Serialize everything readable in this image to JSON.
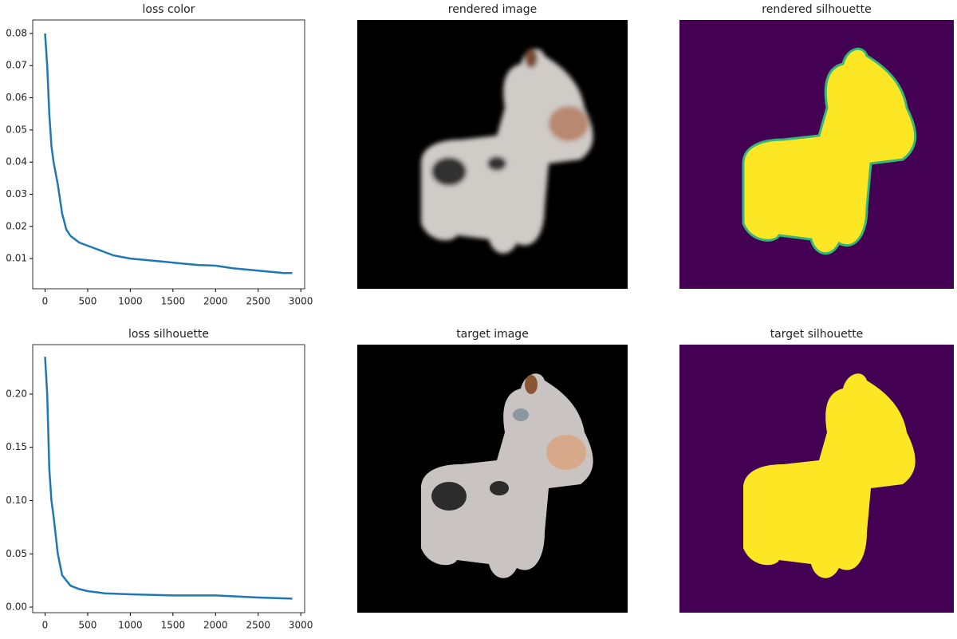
{
  "chart_data": [
    {
      "type": "line",
      "title": "loss color",
      "color": "#1f77b4",
      "x": [
        0,
        25,
        50,
        75,
        100,
        150,
        200,
        250,
        300,
        400,
        500,
        600,
        700,
        800,
        900,
        1000,
        1200,
        1400,
        1600,
        1800,
        2000,
        2200,
        2400,
        2600,
        2800,
        2900
      ],
      "values": [
        0.08,
        0.07,
        0.055,
        0.045,
        0.04,
        0.033,
        0.024,
        0.019,
        0.017,
        0.015,
        0.014,
        0.013,
        0.012,
        0.011,
        0.0105,
        0.01,
        0.0095,
        0.009,
        0.0085,
        0.008,
        0.0078,
        0.007,
        0.0065,
        0.006,
        0.0055,
        0.0055
      ],
      "xlim": [
        -145,
        3045
      ],
      "ylim": [
        0.0006,
        0.0842
      ],
      "xticks": [
        0,
        500,
        1000,
        1500,
        2000,
        2500,
        3000
      ],
      "yticks": [
        0.01,
        0.02,
        0.03,
        0.04,
        0.05,
        0.06,
        0.07,
        0.08
      ]
    },
    {
      "type": "image",
      "title": "rendered image"
    },
    {
      "type": "image",
      "title": "rendered silhouette"
    },
    {
      "type": "line",
      "title": "loss silhouette",
      "color": "#1f77b4",
      "x": [
        0,
        25,
        50,
        75,
        100,
        150,
        200,
        250,
        300,
        400,
        500,
        700,
        1000,
        1500,
        2000,
        2500,
        2900
      ],
      "values": [
        0.235,
        0.2,
        0.13,
        0.1,
        0.085,
        0.05,
        0.03,
        0.025,
        0.02,
        0.017,
        0.015,
        0.013,
        0.012,
        0.011,
        0.011,
        0.009,
        0.008
      ],
      "xlim": [
        -145,
        3045
      ],
      "ylim": [
        -0.0052,
        0.2464
      ],
      "xticks": [
        0,
        500,
        1000,
        1500,
        2000,
        2500,
        3000
      ],
      "yticks": [
        {
          "value": 0,
          "label": "0.00"
        },
        {
          "value": 0.05,
          "label": "0.05"
        },
        {
          "value": 0.1,
          "label": "0.10"
        },
        {
          "value": 0.15,
          "label": "0.15"
        },
        {
          "value": 0.2,
          "label": "0.20"
        }
      ]
    },
    {
      "type": "image",
      "title": "target image"
    },
    {
      "type": "image",
      "title": "target silhouette"
    }
  ]
}
